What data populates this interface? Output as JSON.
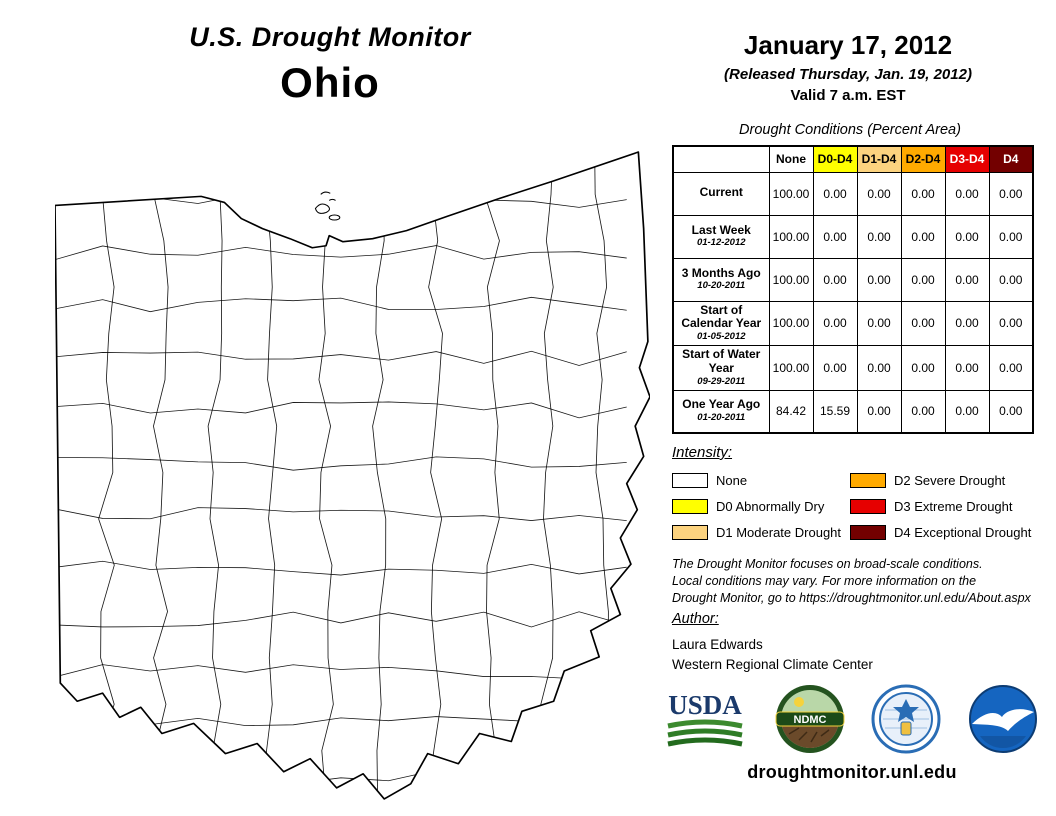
{
  "header": {
    "title": "U.S. Drought Monitor",
    "state": "Ohio",
    "date": "January 17, 2012",
    "released": "(Released Thursday, Jan. 19, 2012)",
    "valid": "Valid 7 a.m. EST"
  },
  "table": {
    "title": "Drought Conditions (Percent Area)",
    "columns": [
      "None",
      "D0-D4",
      "D1-D4",
      "D2-D4",
      "D3-D4",
      "D4"
    ],
    "rows": [
      {
        "label": "Current",
        "sublabel": "",
        "values": [
          "100.00",
          "0.00",
          "0.00",
          "0.00",
          "0.00",
          "0.00"
        ]
      },
      {
        "label": "Last Week",
        "sublabel": "01-12-2012",
        "values": [
          "100.00",
          "0.00",
          "0.00",
          "0.00",
          "0.00",
          "0.00"
        ]
      },
      {
        "label": "3 Months Ago",
        "sublabel": "10-20-2011",
        "values": [
          "100.00",
          "0.00",
          "0.00",
          "0.00",
          "0.00",
          "0.00"
        ]
      },
      {
        "label": "Start of Calendar Year",
        "sublabel": "01-05-2012",
        "values": [
          "100.00",
          "0.00",
          "0.00",
          "0.00",
          "0.00",
          "0.00"
        ]
      },
      {
        "label": "Start of Water Year",
        "sublabel": "09-29-2011",
        "values": [
          "100.00",
          "0.00",
          "0.00",
          "0.00",
          "0.00",
          "0.00"
        ]
      },
      {
        "label": "One Year Ago",
        "sublabel": "01-20-2011",
        "values": [
          "84.42",
          "15.59",
          "0.00",
          "0.00",
          "0.00",
          "0.00"
        ]
      }
    ]
  },
  "legend": {
    "title": "Intensity:",
    "items": [
      {
        "label": "None",
        "color": "#FFFFFF"
      },
      {
        "label": "D0 Abnormally Dry",
        "color": "#FFFF00"
      },
      {
        "label": "D1 Moderate Drought",
        "color": "#FCD37F"
      },
      {
        "label": "D2 Severe Drought",
        "color": "#FFAA00"
      },
      {
        "label": "D3 Extreme Drought",
        "color": "#E60000"
      },
      {
        "label": "D4 Exceptional Drought",
        "color": "#730000"
      }
    ]
  },
  "disclaimer": "The Drought Monitor focuses on broad-scale conditions.\nLocal conditions may vary. For more information on the\nDrought Monitor, go to https://droughtmonitor.unl.edu/About.aspx",
  "author": {
    "title": "Author:",
    "name": "Laura Edwards",
    "org": "Western Regional Climate Center"
  },
  "logos": {
    "usda_label": "USDA",
    "ndmc_label": "NDMC",
    "names": [
      "usda-logo",
      "ndmc-logo",
      "commerce-seal-logo",
      "noaa-logo"
    ]
  },
  "footer": "droughtmonitor.unl.edu"
}
